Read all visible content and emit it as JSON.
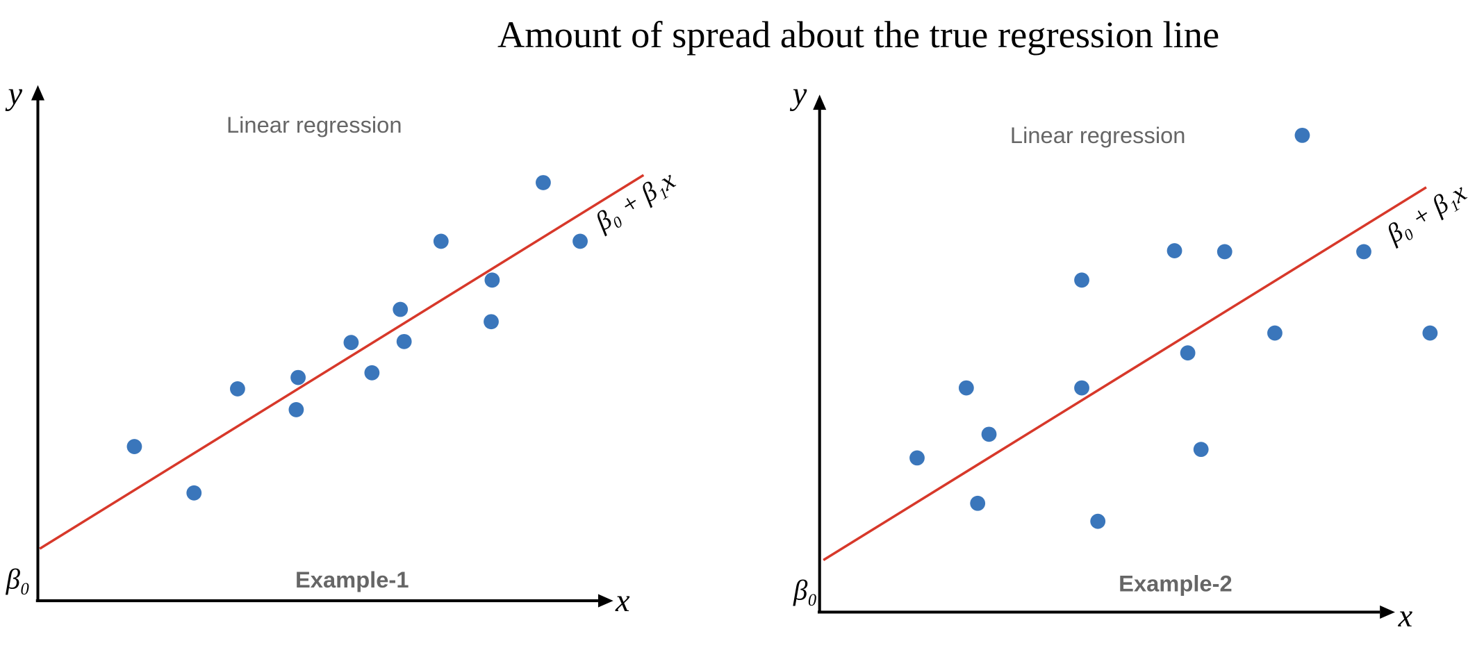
{
  "title": "Amount of spread about the true regression line",
  "panels": [
    {
      "annotation": "Linear regression",
      "label": "Example-1",
      "y_axis": "y",
      "x_axis": "x",
      "intercept": "β₀",
      "line_label": "β₀ + β₁x"
    },
    {
      "annotation": "Linear regression",
      "label": "Example-2",
      "y_axis": "y",
      "x_axis": "x",
      "intercept": "β₀",
      "line_label": "β₀ + β₁x"
    }
  ]
}
